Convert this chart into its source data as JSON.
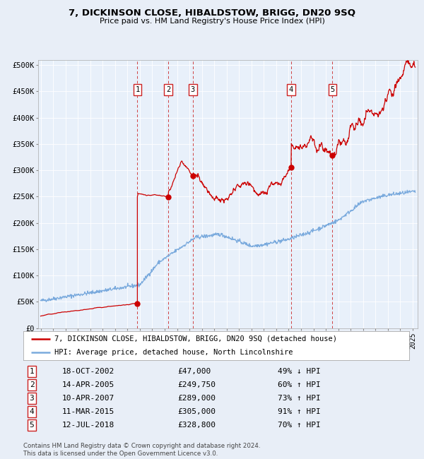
{
  "title": "7, DICKINSON CLOSE, HIBALDSTOW, BRIGG, DN20 9SQ",
  "subtitle": "Price paid vs. HM Land Registry's House Price Index (HPI)",
  "bg_color": "#e8eef7",
  "plot_bg_color": "#e8f0fa",
  "grid_color": "#c8d4e8",
  "sale_color": "#cc0000",
  "hpi_color": "#7aaadd",
  "sales": [
    {
      "label": "1",
      "date_num": 2002.8,
      "price": 47000,
      "date_str": "18-OCT-2002",
      "pct": "49%",
      "dir": "↓"
    },
    {
      "label": "2",
      "date_num": 2005.28,
      "price": 249750,
      "date_str": "14-APR-2005",
      "pct": "60%",
      "dir": "↑"
    },
    {
      "label": "3",
      "date_num": 2007.27,
      "price": 289000,
      "date_str": "10-APR-2007",
      "pct": "73%",
      "dir": "↑"
    },
    {
      "label": "4",
      "date_num": 2015.19,
      "price": 305000,
      "date_str": "11-MAR-2015",
      "pct": "91%",
      "dir": "↑"
    },
    {
      "label": "5",
      "date_num": 2018.53,
      "price": 328800,
      "date_str": "12-JUL-2018",
      "pct": "70%",
      "dir": "↑"
    }
  ],
  "ylim": [
    0,
    510000
  ],
  "xlim": [
    1994.8,
    2025.4
  ],
  "yticks": [
    0,
    50000,
    100000,
    150000,
    200000,
    250000,
    300000,
    350000,
    400000,
    450000,
    500000
  ],
  "ytick_labels": [
    "£0",
    "£50K",
    "£100K",
    "£150K",
    "£200K",
    "£250K",
    "£300K",
    "£350K",
    "£400K",
    "£450K",
    "£500K"
  ],
  "legend_entries": [
    "7, DICKINSON CLOSE, HIBALDSTOW, BRIGG, DN20 9SQ (detached house)",
    "HPI: Average price, detached house, North Lincolnshire"
  ],
  "footer": "Contains HM Land Registry data © Crown copyright and database right 2024.\nThis data is licensed under the Open Government Licence v3.0."
}
